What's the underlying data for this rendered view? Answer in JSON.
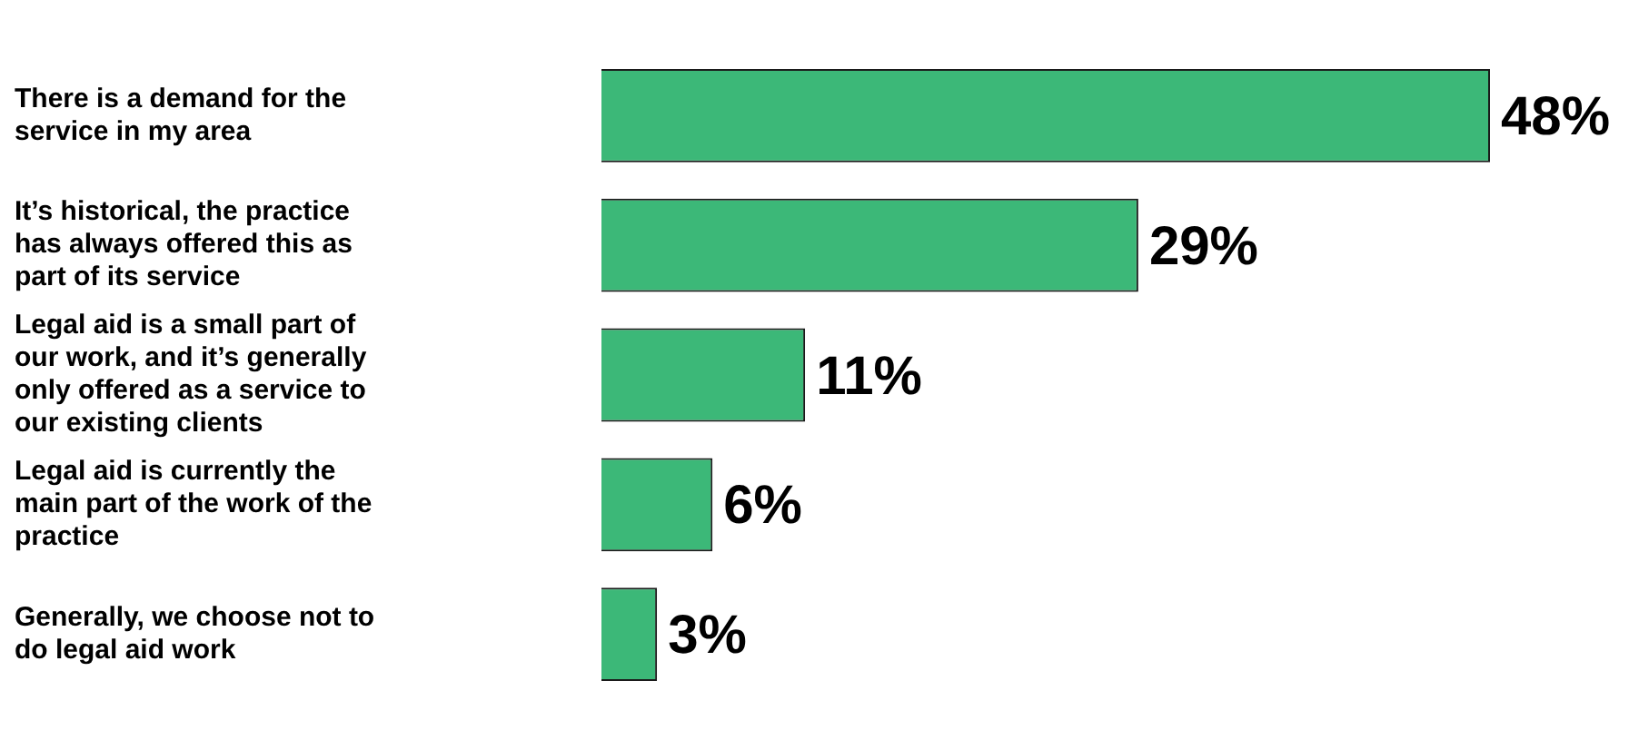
{
  "chart_data": {
    "type": "bar",
    "orientation": "horizontal",
    "categories": [
      "There is a demand for the service in my area",
      "It’s historical, the practice has always offered this as part of its service",
      "Legal aid is a small part of our work, and it’s generally only offered as a service to our existing clients",
      "Legal aid is currently the main part of the work of the practice",
      "Generally, we choose not to do legal aid work"
    ],
    "values": [
      48,
      29,
      11,
      6,
      3
    ],
    "color": "#3cb878",
    "value_labels": [
      "48%",
      "29%",
      "11%",
      "6%",
      "3%"
    ],
    "grid": false,
    "legend": false
  }
}
